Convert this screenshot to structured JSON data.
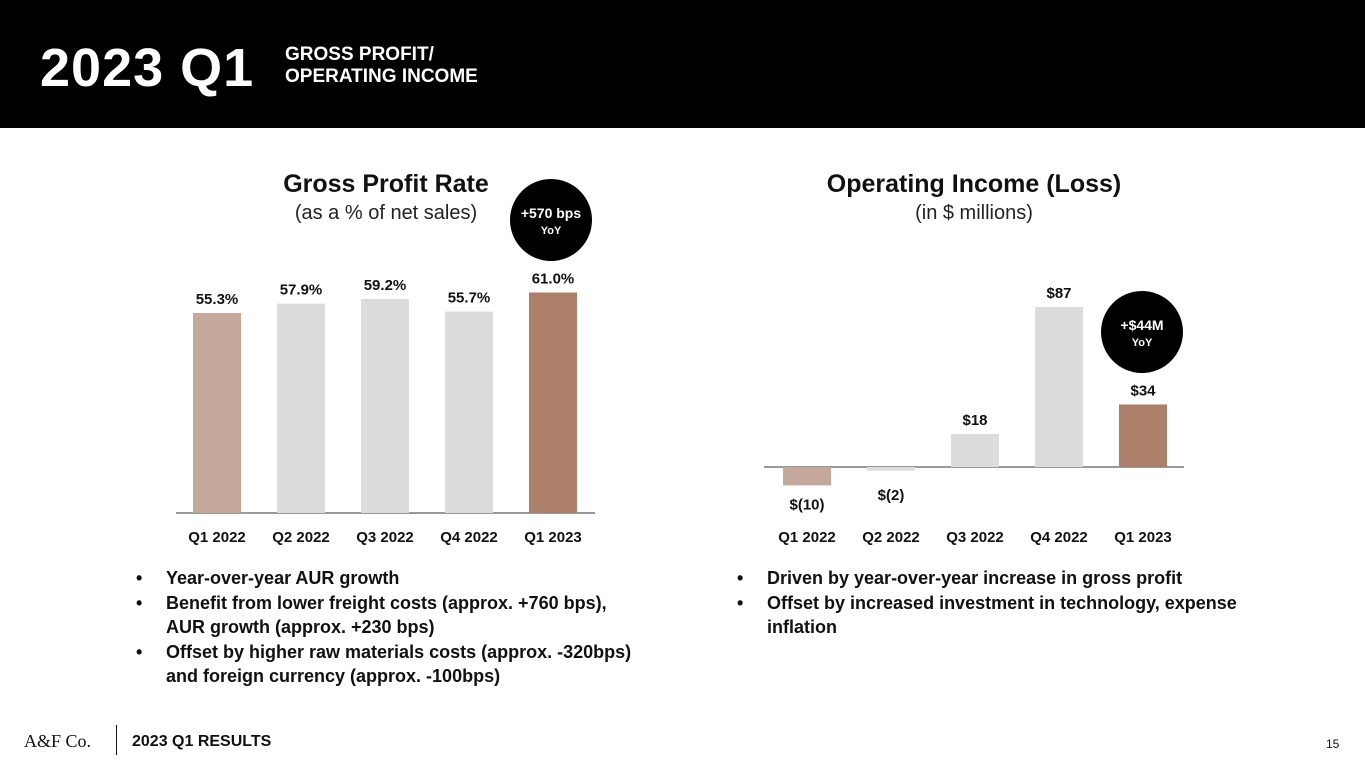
{
  "header": {
    "year": "2023 Q1",
    "subtitle_line1": "GROSS PROFIT/",
    "subtitle_line2": "OPERATING INCOME"
  },
  "left_chart": {
    "title": "Gross Profit Rate",
    "subtitle": "(as a % of net sales)",
    "badge_main": "+570 bps",
    "badge_sub": "YoY",
    "bullets": [
      "Year-over-year AUR growth",
      "Benefit from lower freight costs (approx. +760 bps), AUR growth (approx. +230 bps)",
      "Offset by higher raw materials costs (approx. -320bps) and foreign currency (approx. -100bps)"
    ]
  },
  "right_chart": {
    "title": "Operating Income (Loss)",
    "subtitle": "(in $ millions)",
    "badge_main": "+$44M",
    "badge_sub": "YoY",
    "bullets": [
      "Driven by year-over-year increase in gross profit",
      "Offset by increased investment in technology, expense inflation"
    ]
  },
  "chart_data": [
    {
      "type": "bar",
      "title": "Gross Profit Rate",
      "subtitle": "(as a % of net sales)",
      "categories": [
        "Q1 2022",
        "Q2 2022",
        "Q3 2022",
        "Q4 2022",
        "Q1 2023"
      ],
      "values": [
        55.3,
        57.9,
        59.2,
        55.7,
        61.0
      ],
      "labels": [
        "55.3%",
        "57.9%",
        "59.2%",
        "55.7%",
        "61.0%"
      ],
      "colors": [
        "#c4a89b",
        "#dcdcdc",
        "#dcdcdc",
        "#dcdcdc",
        "#ab7f69"
      ],
      "ylim": [
        0,
        65
      ]
    },
    {
      "type": "bar",
      "title": "Operating Income (Loss)",
      "subtitle": "(in $ millions)",
      "categories": [
        "Q1 2022",
        "Q2 2022",
        "Q3 2022",
        "Q4 2022",
        "Q1 2023"
      ],
      "values": [
        -10,
        -2,
        18,
        87,
        34
      ],
      "labels": [
        "$(10)",
        "$(2)",
        "$18",
        "$87",
        "$34"
      ],
      "colors": [
        "#c4a89b",
        "#dcdcdc",
        "#dcdcdc",
        "#dcdcdc",
        "#ab7f69"
      ],
      "ylim": [
        -10,
        87
      ]
    }
  ],
  "footer": {
    "logo": "A&F Co.",
    "text": "2023 Q1 RESULTS",
    "page": "15"
  }
}
